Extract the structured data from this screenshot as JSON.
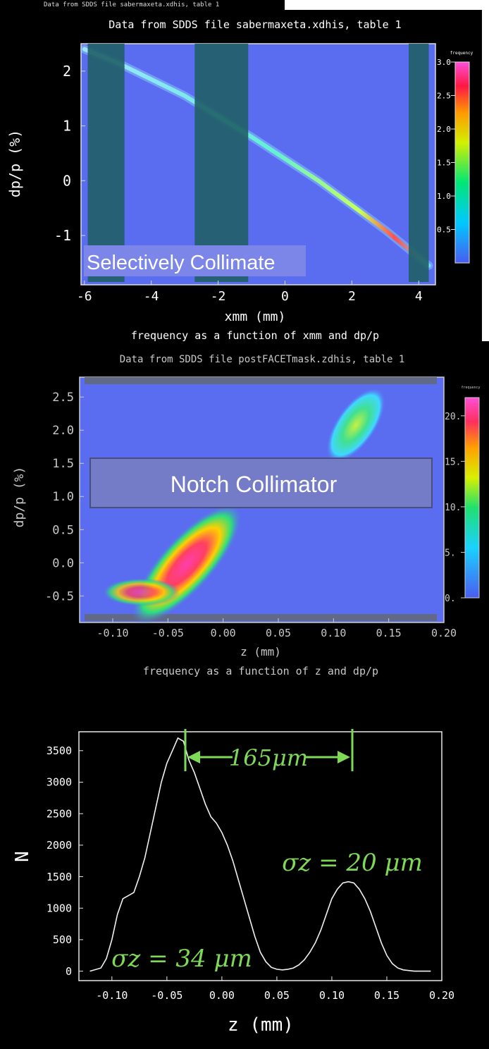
{
  "panel1": {
    "top_caption": "Data from SDDS file sabermaxeta.xdhis, table 1",
    "title": "Data from SDDS file sabermaxeta.xdhis, table 1",
    "xlabel": "xmm (mm)",
    "ylabel": "dp/p (%)",
    "caption": "frequency as a function of xmm and dp/p",
    "overlay_label": "Selectively Collimate",
    "colorbar_title": "frequency",
    "colorbar_ticks": [
      "3.0",
      "2.5",
      "2.0",
      "1.5",
      "1.0",
      "0.5"
    ],
    "x_ticks": [
      "-6",
      "-4",
      "-2",
      "0",
      "2",
      "4"
    ],
    "y_ticks": [
      "2",
      "1",
      "0",
      "-1"
    ]
  },
  "panel2": {
    "title": "Data from SDDS file postFACETmask.zdhis, table 1",
    "xlabel": "z (mm)",
    "ylabel": "dp/p (%)",
    "caption": "frequency as a function of z and dp/p",
    "overlay_label": "Notch Collimator",
    "colorbar_title": "frequency",
    "colorbar_ticks": [
      "20.",
      "15.",
      "10.",
      "5.",
      "0."
    ],
    "x_ticks": [
      "-0.10",
      "-0.05",
      "0.00",
      "0.05",
      "0.10",
      "0.15",
      "0.20"
    ],
    "y_ticks": [
      "2.5",
      "2.0",
      "1.5",
      "1.0",
      "0.5",
      "0.0",
      "-0.5"
    ]
  },
  "panel3": {
    "xlabel": "z (mm)",
    "ylabel": "N",
    "x_ticks": [
      "-0.10",
      "-0.05",
      "0.00",
      "0.05",
      "0.10",
      "0.15",
      "0.20"
    ],
    "y_ticks": [
      "3500",
      "3000",
      "2500",
      "2000",
      "1500",
      "1000",
      "500",
      "0"
    ],
    "annotation_sep": "165μm",
    "annotation_left": "σz = 34 μm",
    "annotation_right": "σz = 20 μm"
  },
  "colors": {
    "background_plot": "#5a6cf0",
    "band": "#1f5f66",
    "label_bg": "#7b86e8",
    "annotation": "#7ed957"
  },
  "chart_data": [
    {
      "type": "heatmap",
      "title": "Data from SDDS file sabermaxeta.xdhis, table 1",
      "xlabel": "xmm (mm)",
      "ylabel": "dp/p (%)",
      "xlim": [
        -6.1,
        4.5
      ],
      "ylim": [
        -1.9,
        2.5
      ],
      "zlim": [
        0,
        3.0
      ],
      "ridge": {
        "x": [
          -6.0,
          -5.0,
          -3.0,
          -1.0,
          0.0,
          1.0,
          2.0,
          3.0,
          4.0,
          4.3
        ],
        "y": [
          2.4,
          2.15,
          1.55,
          0.8,
          0.4,
          0.0,
          -0.45,
          -0.9,
          -1.4,
          -1.55
        ]
      },
      "collimator_x_ranges": [
        [
          -5.9,
          -4.8
        ],
        [
          -2.7,
          -1.1
        ],
        [
          3.7,
          4.3
        ]
      ]
    },
    {
      "type": "heatmap",
      "title": "Data from SDDS file postFACETmask.zdhis, table 1",
      "xlabel": "z (mm)",
      "ylabel": "dp/p (%)",
      "xlim": [
        -0.13,
        0.2
      ],
      "ylim": [
        -0.9,
        2.8
      ],
      "zlim": [
        0,
        22
      ],
      "notch_y_range": [
        0.8,
        1.5
      ]
    },
    {
      "type": "line",
      "xlabel": "z (mm)",
      "ylabel": "N",
      "xlim": [
        -0.13,
        0.2
      ],
      "ylim": [
        -150,
        3800
      ],
      "x": [
        -0.12,
        -0.11,
        -0.105,
        -0.1,
        -0.095,
        -0.09,
        -0.085,
        -0.08,
        -0.075,
        -0.07,
        -0.065,
        -0.06,
        -0.055,
        -0.05,
        -0.045,
        -0.04,
        -0.035,
        -0.03,
        -0.025,
        -0.02,
        -0.015,
        -0.01,
        -0.005,
        0.0,
        0.005,
        0.01,
        0.015,
        0.02,
        0.025,
        0.03,
        0.035,
        0.04,
        0.045,
        0.05,
        0.055,
        0.06,
        0.065,
        0.07,
        0.075,
        0.08,
        0.085,
        0.09,
        0.095,
        0.1,
        0.105,
        0.11,
        0.115,
        0.12,
        0.125,
        0.13,
        0.135,
        0.14,
        0.145,
        0.15,
        0.155,
        0.16,
        0.165,
        0.17,
        0.175,
        0.18,
        0.185,
        0.19
      ],
      "y": [
        0,
        50,
        200,
        500,
        900,
        1150,
        1200,
        1250,
        1500,
        1800,
        2200,
        2600,
        3000,
        3300,
        3500,
        3700,
        3650,
        3350,
        3150,
        2900,
        2650,
        2450,
        2350,
        2200,
        2000,
        1750,
        1450,
        1150,
        850,
        550,
        300,
        150,
        60,
        30,
        20,
        30,
        50,
        100,
        180,
        300,
        450,
        650,
        900,
        1150,
        1300,
        1400,
        1420,
        1400,
        1300,
        1150,
        950,
        700,
        450,
        250,
        120,
        50,
        20,
        10,
        0,
        0,
        0,
        0
      ]
    }
  ]
}
